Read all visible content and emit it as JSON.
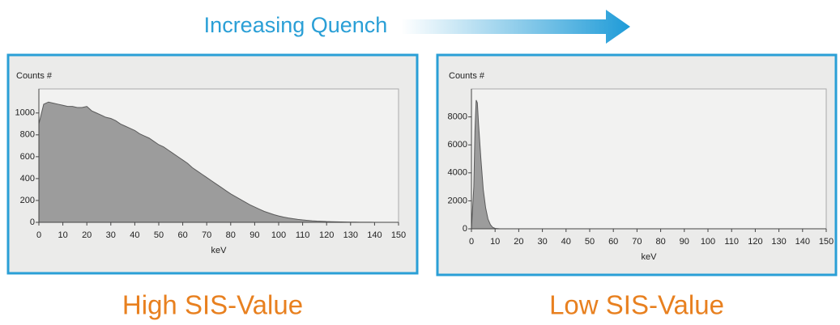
{
  "header": "Increasing Quench",
  "chart_data": [
    {
      "type": "area",
      "title": "High SIS-Value",
      "ylabel": "Counts #",
      "xlabel": "keV",
      "color": "#9c9c9c",
      "line_color": "#5a5a5a",
      "x": [
        0,
        2,
        4,
        6,
        8,
        10,
        12,
        14,
        16,
        18,
        20,
        22,
        24,
        26,
        28,
        30,
        32,
        34,
        36,
        38,
        40,
        42,
        44,
        46,
        48,
        50,
        52,
        54,
        56,
        58,
        60,
        62,
        64,
        66,
        68,
        70,
        72,
        74,
        76,
        78,
        80,
        82,
        84,
        86,
        88,
        90,
        92,
        94,
        96,
        98,
        100,
        102,
        104,
        106,
        108,
        110,
        112,
        114,
        116,
        118,
        120,
        122,
        124,
        126,
        128,
        130,
        132,
        134,
        136,
        138,
        140,
        142,
        144,
        146,
        148,
        150
      ],
      "values": [
        900,
        1080,
        1100,
        1090,
        1080,
        1070,
        1060,
        1060,
        1050,
        1050,
        1060,
        1020,
        1000,
        980,
        960,
        950,
        930,
        900,
        880,
        860,
        840,
        810,
        790,
        770,
        740,
        710,
        690,
        660,
        630,
        600,
        570,
        540,
        500,
        470,
        440,
        410,
        380,
        350,
        320,
        290,
        260,
        235,
        210,
        185,
        160,
        140,
        120,
        100,
        85,
        70,
        58,
        48,
        40,
        33,
        27,
        22,
        18,
        14,
        11,
        9,
        7,
        6,
        5,
        4,
        3,
        2,
        2,
        1,
        1,
        1,
        0,
        0,
        0,
        0,
        0,
        0
      ],
      "xlim": [
        0,
        150
      ],
      "xticks": [
        0,
        10,
        20,
        30,
        40,
        50,
        60,
        70,
        80,
        90,
        100,
        110,
        120,
        130,
        140,
        150
      ],
      "ylim": [
        0,
        1220
      ],
      "yticks": [
        0,
        200,
        400,
        600,
        800,
        1000
      ]
    },
    {
      "type": "area",
      "title": "Low SIS-Value",
      "ylabel": "Counts #",
      "xlabel": "keV",
      "color": "#9c9c9c",
      "line_color": "#5a5a5a",
      "x": [
        0,
        1,
        1.5,
        2,
        2.5,
        3,
        4,
        5,
        6,
        7,
        8,
        9,
        10,
        12,
        150
      ],
      "values": [
        0,
        3000,
        7000,
        9200,
        9000,
        7500,
        5000,
        2800,
        1500,
        700,
        300,
        100,
        30,
        0,
        0
      ],
      "xlim": [
        0,
        150
      ],
      "xticks": [
        0,
        10,
        20,
        30,
        40,
        50,
        60,
        70,
        80,
        90,
        100,
        110,
        120,
        130,
        140,
        150
      ],
      "ylim": [
        0,
        10000
      ],
      "yticks": [
        0,
        2000,
        4000,
        6000,
        8000
      ]
    }
  ]
}
